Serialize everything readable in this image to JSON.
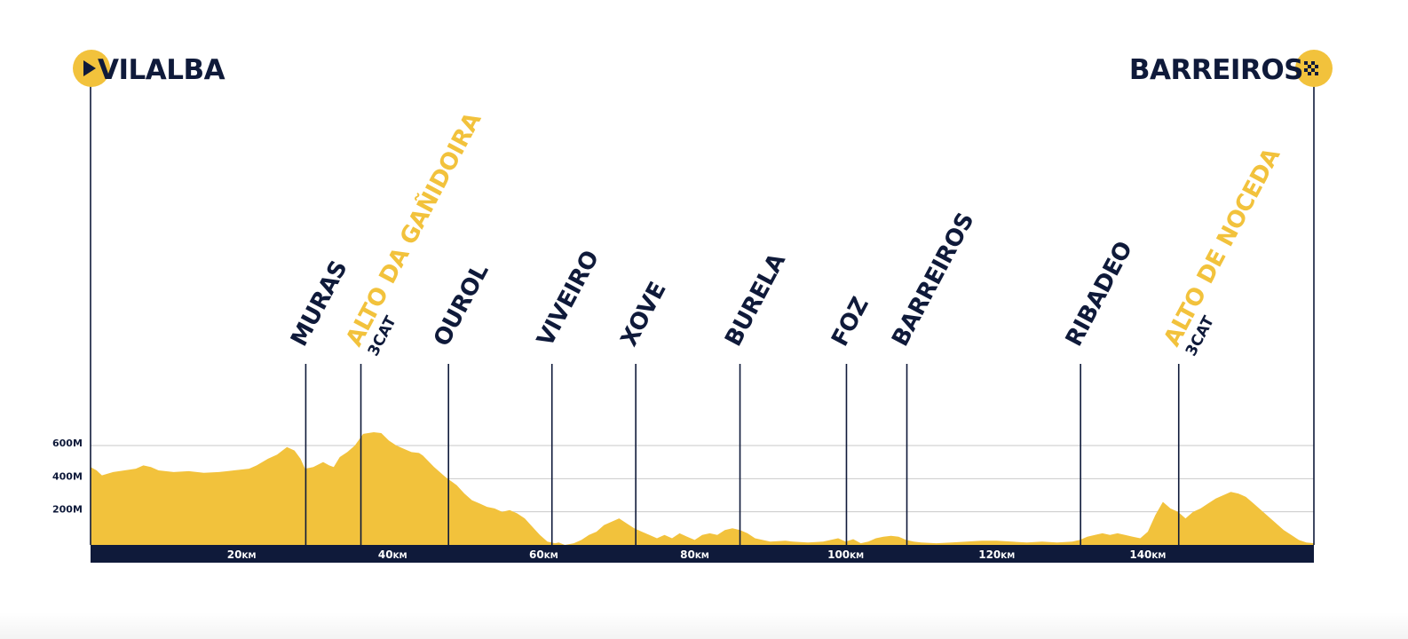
{
  "colors": {
    "profile": "#f2c23c",
    "navy": "#0f1a3a",
    "grid": "#c9c9c9"
  },
  "icons": {
    "start": "play-icon",
    "finish": "checkered-flag-icon"
  },
  "chart_data": {
    "type": "area",
    "start": "VILALBA",
    "finish": "BARREIROS",
    "x_unit": "KM",
    "xlim": [
      0,
      162
    ],
    "ylim": [
      0,
      700
    ],
    "x_ticks": [
      {
        "value": 20,
        "num": "20",
        "unit": "KM"
      },
      {
        "value": 40,
        "num": "40",
        "unit": "KM"
      },
      {
        "value": 60,
        "num": "60",
        "unit": "KM"
      },
      {
        "value": 80,
        "num": "80",
        "unit": "KM"
      },
      {
        "value": 100,
        "num": "100",
        "unit": "KM"
      },
      {
        "value": 120,
        "num": "120",
        "unit": "KM"
      },
      {
        "value": 140,
        "num": "140",
        "unit": "KM"
      }
    ],
    "y_ticks": [
      {
        "value": 200,
        "label": "200M"
      },
      {
        "value": 400,
        "label": "400M"
      },
      {
        "value": 600,
        "label": "600M"
      }
    ],
    "waypoints": [
      {
        "name": "MURAS",
        "km": 28.5,
        "category": "",
        "climb": false
      },
      {
        "name": "ALTO DA GAÑIDOIRA",
        "km": 35.8,
        "category": "3CAT",
        "climb": true
      },
      {
        "name": "OUROL",
        "km": 47.4,
        "category": "",
        "climb": false
      },
      {
        "name": "VIVEIRO",
        "km": 61.1,
        "category": "",
        "climb": false
      },
      {
        "name": "XOVE",
        "km": 72.2,
        "category": "",
        "climb": false
      },
      {
        "name": "BURELA",
        "km": 86.0,
        "category": "",
        "climb": false
      },
      {
        "name": "FOZ",
        "km": 100.1,
        "category": "",
        "climb": false
      },
      {
        "name": "BARREIROS",
        "km": 108.1,
        "category": "",
        "climb": false
      },
      {
        "name": "RIBADEO",
        "km": 131.1,
        "category": "",
        "climb": false
      },
      {
        "name": "ALTO DE NOCEDA",
        "km": 144.1,
        "category": "3CAT",
        "climb": true
      }
    ],
    "elevation": [
      [
        0,
        470
      ],
      [
        0.8,
        450
      ],
      [
        1.5,
        420
      ],
      [
        3,
        440
      ],
      [
        4.5,
        450
      ],
      [
        6,
        460
      ],
      [
        7,
        480
      ],
      [
        8,
        470
      ],
      [
        9,
        450
      ],
      [
        11,
        440
      ],
      [
        13,
        445
      ],
      [
        15,
        435
      ],
      [
        17,
        440
      ],
      [
        19,
        450
      ],
      [
        21,
        460
      ],
      [
        22,
        480
      ],
      [
        23.5,
        520
      ],
      [
        24.7,
        545
      ],
      [
        26,
        590
      ],
      [
        27,
        570
      ],
      [
        27.8,
        520
      ],
      [
        28.4,
        460
      ],
      [
        29.5,
        470
      ],
      [
        30.8,
        500
      ],
      [
        31.6,
        480
      ],
      [
        32.2,
        470
      ],
      [
        33,
        530
      ],
      [
        34,
        560
      ],
      [
        35,
        600
      ],
      [
        36.1,
        670
      ],
      [
        37.5,
        680
      ],
      [
        38.5,
        675
      ],
      [
        39.5,
        630
      ],
      [
        40.5,
        600
      ],
      [
        41.5,
        580
      ],
      [
        42.5,
        560
      ],
      [
        43.5,
        555
      ],
      [
        44,
        540
      ],
      [
        45.5,
        470
      ],
      [
        47,
        410
      ],
      [
        48.5,
        360
      ],
      [
        49.5,
        310
      ],
      [
        50.5,
        270
      ],
      [
        51.5,
        250
      ],
      [
        52.5,
        230
      ],
      [
        53.5,
        220
      ],
      [
        54.5,
        200
      ],
      [
        55.5,
        210
      ],
      [
        56.5,
        190
      ],
      [
        57.5,
        160
      ],
      [
        58.5,
        110
      ],
      [
        59.5,
        60
      ],
      [
        60.5,
        20
      ],
      [
        61.5,
        10
      ],
      [
        62,
        15
      ],
      [
        62.8,
        0
      ],
      [
        64,
        10
      ],
      [
        65,
        30
      ],
      [
        66,
        60
      ],
      [
        67,
        80
      ],
      [
        68,
        120
      ],
      [
        69,
        140
      ],
      [
        70,
        160
      ],
      [
        71,
        130
      ],
      [
        72,
        100
      ],
      [
        73,
        80
      ],
      [
        74,
        60
      ],
      [
        75,
        40
      ],
      [
        76,
        60
      ],
      [
        77,
        40
      ],
      [
        78,
        70
      ],
      [
        79,
        50
      ],
      [
        80,
        30
      ],
      [
        81,
        60
      ],
      [
        82,
        70
      ],
      [
        83,
        60
      ],
      [
        84,
        90
      ],
      [
        85,
        100
      ],
      [
        86,
        90
      ],
      [
        87,
        70
      ],
      [
        88,
        40
      ],
      [
        89,
        30
      ],
      [
        90,
        20
      ],
      [
        92,
        25
      ],
      [
        93,
        20
      ],
      [
        95,
        15
      ],
      [
        97,
        20
      ],
      [
        98,
        30
      ],
      [
        99,
        40
      ],
      [
        100,
        20
      ],
      [
        101,
        35
      ],
      [
        102,
        10
      ],
      [
        103,
        20
      ],
      [
        104,
        40
      ],
      [
        105,
        50
      ],
      [
        106,
        55
      ],
      [
        107,
        50
      ],
      [
        108,
        30
      ],
      [
        109,
        20
      ],
      [
        110,
        15
      ],
      [
        112,
        10
      ],
      [
        114,
        15
      ],
      [
        116,
        20
      ],
      [
        118,
        25
      ],
      [
        120,
        25
      ],
      [
        122,
        20
      ],
      [
        124,
        15
      ],
      [
        126,
        20
      ],
      [
        128,
        15
      ],
      [
        130,
        20
      ],
      [
        131,
        30
      ],
      [
        132,
        50
      ],
      [
        133,
        60
      ],
      [
        134,
        70
      ],
      [
        135,
        60
      ],
      [
        136,
        70
      ],
      [
        137,
        60
      ],
      [
        138,
        50
      ],
      [
        139,
        40
      ],
      [
        140,
        80
      ],
      [
        141,
        180
      ],
      [
        142,
        260
      ],
      [
        143,
        220
      ],
      [
        144,
        200
      ],
      [
        145,
        160
      ],
      [
        146,
        200
      ],
      [
        147,
        220
      ],
      [
        148,
        250
      ],
      [
        149,
        280
      ],
      [
        150,
        300
      ],
      [
        151,
        320
      ],
      [
        152,
        310
      ],
      [
        153,
        290
      ],
      [
        154,
        250
      ],
      [
        155,
        210
      ],
      [
        156,
        170
      ],
      [
        157,
        130
      ],
      [
        158,
        90
      ],
      [
        159,
        60
      ],
      [
        160,
        30
      ],
      [
        161,
        15
      ],
      [
        162,
        10
      ]
    ]
  }
}
